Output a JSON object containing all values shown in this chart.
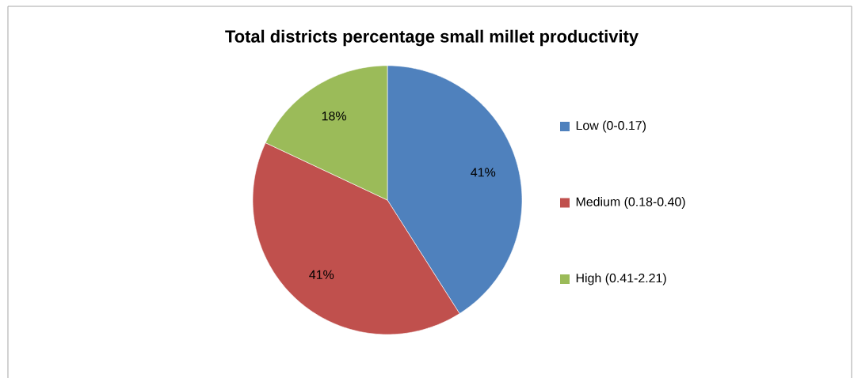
{
  "chart_data": {
    "type": "pie",
    "title": "Total districts percentage small millet productivity",
    "categories": [
      "Low (0-0.17)",
      "Medium (0.18-0.40)",
      "High (0.41-2.21)"
    ],
    "values": [
      41,
      41,
      18
    ],
    "colors": [
      "#4f81bd",
      "#c0504d",
      "#9bbb59"
    ],
    "value_labels": [
      "41%",
      "41%",
      "18%"
    ],
    "legend": "right"
  }
}
